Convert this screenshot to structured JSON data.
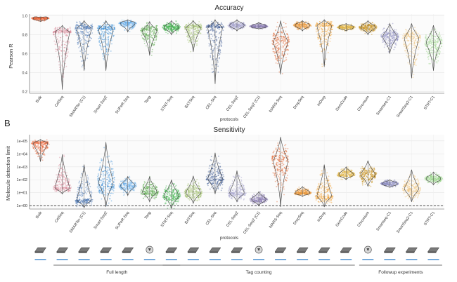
{
  "chart_data": [
    {
      "type": "scatter",
      "title": "Accuracy",
      "xlabel": "protocols",
      "ylabel": "Pearson R",
      "ylim": [
        0.18,
        1.02
      ],
      "yticks": [
        "0.2",
        "0.4",
        "0.6",
        "0.8",
        "1.0"
      ],
      "ytick_values": [
        0.2,
        0.4,
        0.6,
        0.8,
        1.0
      ],
      "grid": true,
      "categories": [
        "Bulk",
        "CelSeq",
        "SMARTer (C1)",
        "Smart-Seq2",
        "SUPeR-Seq",
        "Tang",
        "STRT-Seq",
        "BATSeq",
        "CEL-Seq",
        "CEL-Seq2",
        "CEL-Seq2 (C1)",
        "MARS-Seq",
        "DropSeq",
        "InDrop",
        "GemCode",
        "Chromium",
        "Smartseq-C1",
        "SmartSeq2-C1",
        "STRT-C1"
      ],
      "series": [
        {
          "values": [
            {
              "min": 0.94,
              "median": 0.975,
              "max": 0.99
            },
            {
              "min": 0.22,
              "median": 0.82,
              "max": 0.9
            },
            {
              "min": 0.42,
              "median": 0.86,
              "max": 0.95
            },
            {
              "min": 0.42,
              "median": 0.85,
              "max": 0.95
            },
            {
              "min": 0.83,
              "median": 0.92,
              "max": 0.96
            },
            {
              "min": 0.58,
              "median": 0.84,
              "max": 0.94
            },
            {
              "min": 0.8,
              "median": 0.88,
              "max": 0.95
            },
            {
              "min": 0.62,
              "median": 0.87,
              "max": 0.95
            },
            {
              "min": 0.28,
              "median": 0.87,
              "max": 0.96
            },
            {
              "min": 0.84,
              "median": 0.9,
              "max": 0.96
            },
            {
              "min": 0.86,
              "median": 0.89,
              "max": 0.93
            },
            {
              "min": 0.38,
              "median": 0.72,
              "max": 0.95
            },
            {
              "min": 0.84,
              "median": 0.9,
              "max": 0.95
            },
            {
              "min": 0.46,
              "median": 0.89,
              "max": 0.96
            },
            {
              "min": 0.84,
              "median": 0.88,
              "max": 0.92
            },
            {
              "min": 0.8,
              "median": 0.88,
              "max": 0.95
            },
            {
              "min": 0.6,
              "median": 0.78,
              "max": 0.92
            },
            {
              "min": 0.34,
              "median": 0.76,
              "max": 0.92
            },
            {
              "min": 0.42,
              "median": 0.72,
              "max": 0.9
            }
          ]
        }
      ]
    },
    {
      "type": "scatter",
      "title": "Sensitivity",
      "panel_label": "B",
      "xlabel": "protocols",
      "ylabel": "Molecule detection limit",
      "y_scale": "log",
      "ylim": [
        0.55,
        300000
      ],
      "yticks": [
        "1e+00",
        "1e+01",
        "1e+02",
        "1e+03",
        "1e+04",
        "1e+05"
      ],
      "ytick_values": [
        1,
        10,
        100,
        1000,
        10000,
        100000
      ],
      "reference_line": 1,
      "grid": true,
      "categories": [
        "Bulk",
        "CelSeq",
        "SMARTer (C1)",
        "Smart-Seq2",
        "SUPeR-Seq",
        "Tang",
        "STRT-Seq",
        "BATSeq",
        "CEL-Seq",
        "CEL-Seq2",
        "CEL-Seq2 (C1)",
        "MARS-Seq",
        "DropSeq",
        "InDrop",
        "GemCode",
        "Chromium",
        "Smartseq-C1",
        "SmartSeq2-C1",
        "STRT-C1"
      ],
      "series": [
        {
          "values": [
            {
              "min": 2500,
              "median": 60000,
              "max": 130000
            },
            {
              "min": 8,
              "median": 25,
              "max": 9000
            },
            {
              "min": 0.7,
              "median": 3,
              "max": 1500
            },
            {
              "min": 0.8,
              "median": 60,
              "max": 80000
            },
            {
              "min": 6,
              "median": 35,
              "max": 180
            },
            {
              "min": 2,
              "median": 12,
              "max": 180
            },
            {
              "min": 0.6,
              "median": 6,
              "max": 100
            },
            {
              "min": 1.5,
              "median": 10,
              "max": 200
            },
            {
              "min": 8,
              "median": 120,
              "max": 12000
            },
            {
              "min": 2,
              "median": 10,
              "max": 500
            },
            {
              "min": 1,
              "median": 3,
              "max": 12
            },
            {
              "min": 0.8,
              "median": 2500,
              "max": 200000
            },
            {
              "min": 5,
              "median": 10,
              "max": 30
            },
            {
              "min": 0.8,
              "median": 6,
              "max": 1500
            },
            {
              "min": 100,
              "median": 250,
              "max": 1000
            },
            {
              "min": 30,
              "median": 250,
              "max": 3000
            },
            {
              "min": 25,
              "median": 50,
              "max": 100
            },
            {
              "min": 2,
              "median": 20,
              "max": 600
            },
            {
              "min": 40,
              "median": 120,
              "max": 400
            }
          ]
        }
      ]
    }
  ],
  "colors": [
    "#e8673a",
    "#d88896",
    "#4a76b4",
    "#3a8fd6",
    "#6db0e8",
    "#5fae52",
    "#3bb44a",
    "#9fbf6b",
    "#3e5a94",
    "#a7a3cf",
    "#8f81b6",
    "#e0642e",
    "#e8963a",
    "#f2a33a",
    "#e1b445",
    "#c79322",
    "#8d8fc2",
    "#f0c47a",
    "#98d48a"
  ],
  "groups": [
    {
      "label": "Full length",
      "from": 1,
      "to": 6
    },
    {
      "label": "Tag counting",
      "from": 6,
      "to": 14
    },
    {
      "label": "Followup experiments",
      "from": 15,
      "to": 18
    }
  ],
  "protocol_icons": [
    "chip-icon",
    "chip-icon",
    "chip-icon",
    "chip-icon",
    "chip-icon",
    "chip-icon",
    "chip-icon",
    "chip-icon",
    "chip-icon",
    "chip-icon",
    "chip-icon",
    "chip-icon",
    "chip-icon",
    "chip-icon",
    "chip-icon",
    "chip-icon",
    "chip-icon",
    "chip-icon",
    "chip-icon"
  ]
}
